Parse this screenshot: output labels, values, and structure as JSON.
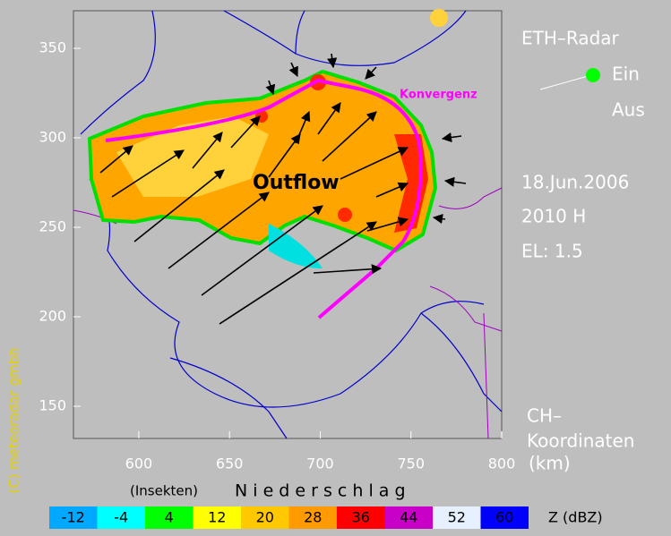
{
  "header": {
    "title": "ETH–Radar",
    "legend_on": "Ein",
    "legend_off": "Aus"
  },
  "info": {
    "date": "18.Jun.2006",
    "time": "2010 H",
    "elevation": "EL: 1.5"
  },
  "axes": {
    "x_ticks": [
      600,
      650,
      700,
      750,
      800
    ],
    "y_ticks": [
      150,
      200,
      250,
      300,
      350
    ],
    "xlim": [
      564,
      800
    ],
    "ylim": [
      132,
      371
    ],
    "label_line1": "CH–",
    "label_line2": "Koordinaten",
    "label_unit": "(km)"
  },
  "annotations": {
    "convergence": "Konvergenz",
    "outflow": "Outflow"
  },
  "copyright": "(C) meteoradar gmbh",
  "colorbar": {
    "left_label": "(Insekten)",
    "right_label": "N i e d e r s c h l a g",
    "unit": "Z  (dBZ)",
    "levels": [
      -12,
      -4,
      4,
      12,
      20,
      28,
      36,
      44,
      52,
      60
    ],
    "colors": [
      "#00a8ff",
      "#00ffff",
      "#00ff00",
      "#ffff00",
      "#ffc800",
      "#ff9b00",
      "#ff0000",
      "#c800c8",
      "#e6f0ff",
      "#0000ff"
    ]
  }
}
